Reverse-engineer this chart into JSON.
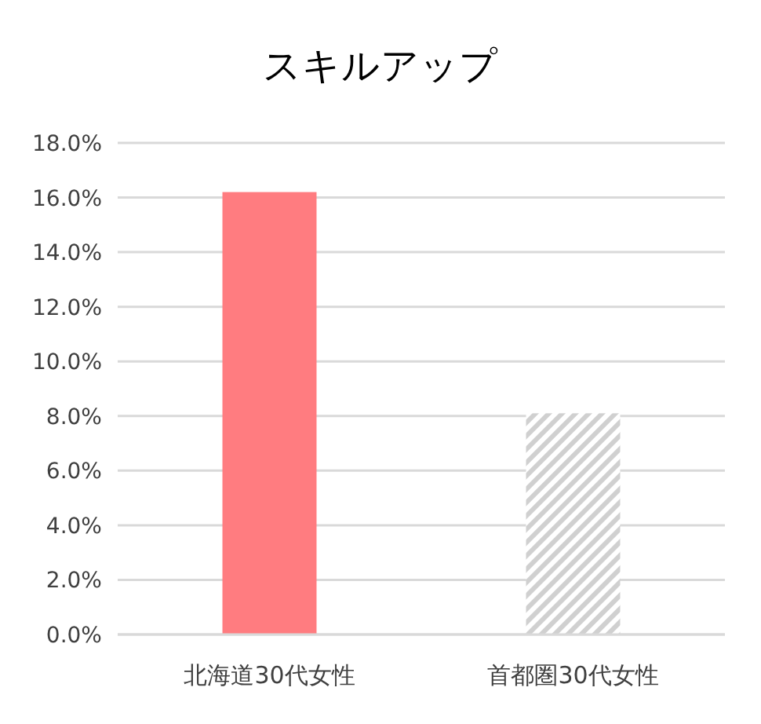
{
  "chart_data": {
    "type": "bar",
    "title": "スキルアップ",
    "categories": [
      "北海道30代女性",
      "首都圏30代女性"
    ],
    "values": [
      16.2,
      8.1
    ],
    "colors": [
      "#ff7c80",
      "#d0d0d0"
    ],
    "ylim": [
      0,
      18
    ],
    "yticks": [
      {
        "value": 0,
        "label": "0.0%"
      },
      {
        "value": 2,
        "label": "2.0%"
      },
      {
        "value": 4,
        "label": "4.0%"
      },
      {
        "value": 6,
        "label": "6.0%"
      },
      {
        "value": 8,
        "label": "8.0%"
      },
      {
        "value": 10,
        "label": "10.0%"
      },
      {
        "value": 12,
        "label": "12.0%"
      },
      {
        "value": 14,
        "label": "14.0%"
      },
      {
        "value": 16,
        "label": "16.0%"
      },
      {
        "value": 18,
        "label": "18.0%"
      }
    ],
    "grid": "y"
  }
}
